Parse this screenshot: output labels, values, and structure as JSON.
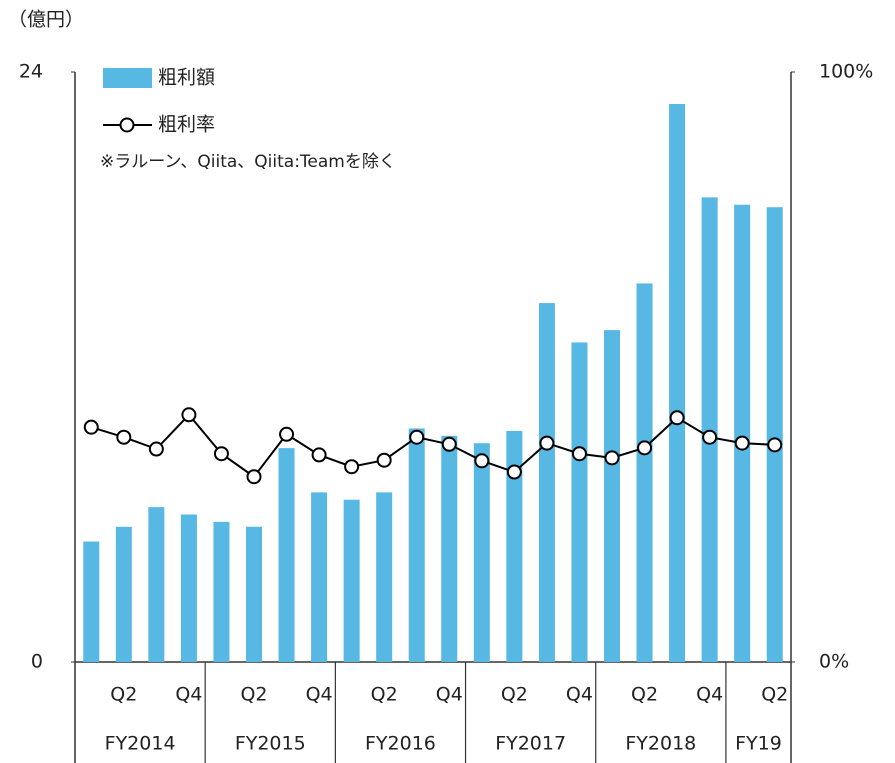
{
  "chart_data": {
    "type": "bar_line",
    "unit_label": "（億円）",
    "note": "※ラルーン、Qiita、Qiita:Teamを除く",
    "categories": [
      null,
      "Q2",
      null,
      "Q4",
      null,
      "Q2",
      null,
      "Q4",
      null,
      "Q2",
      null,
      "Q4",
      null,
      "Q2",
      null,
      "Q4",
      null,
      "Q2",
      null,
      "Q4",
      null,
      "Q2"
    ],
    "category_groups": [
      "FY2014",
      "FY2014",
      "FY2014",
      "FY2014",
      "FY2015",
      "FY2015",
      "FY2015",
      "FY2015",
      "FY2016",
      "FY2016",
      "FY2016",
      "FY2016",
      "FY2017",
      "FY2017",
      "FY2017",
      "FY2017",
      "FY2018",
      "FY2018",
      "FY2018",
      "FY2018",
      "FY19",
      "FY19"
    ],
    "series": [
      {
        "name": "粗利額",
        "type": "bar",
        "color": "#56b8e3",
        "axis": "y",
        "values": [
          4.9,
          5.5,
          6.3,
          6.0,
          5.7,
          5.5,
          8.7,
          6.9,
          6.6,
          6.9,
          9.5,
          9.2,
          8.9,
          9.4,
          14.6,
          13.0,
          13.5,
          15.4,
          22.7,
          18.9,
          18.6,
          18.5
        ]
      },
      {
        "name": "粗利率",
        "type": "line",
        "color": "#000000",
        "axis": "y2",
        "values": [
          39.8,
          38.1,
          36.1,
          41.9,
          35.3,
          31.4,
          38.6,
          35.1,
          33.1,
          34.2,
          38.1,
          36.9,
          34.1,
          32.2,
          37.1,
          35.3,
          34.6,
          36.3,
          41.4,
          38.1,
          37.1,
          36.8
        ]
      }
    ],
    "ylim": [
      0,
      24
    ],
    "yticks": [
      0,
      24
    ],
    "y2lim": [
      0,
      100
    ],
    "y2ticks": [
      {
        "value": 0,
        "label": "0%"
      },
      {
        "value": 100,
        "label": "100%"
      }
    ]
  }
}
